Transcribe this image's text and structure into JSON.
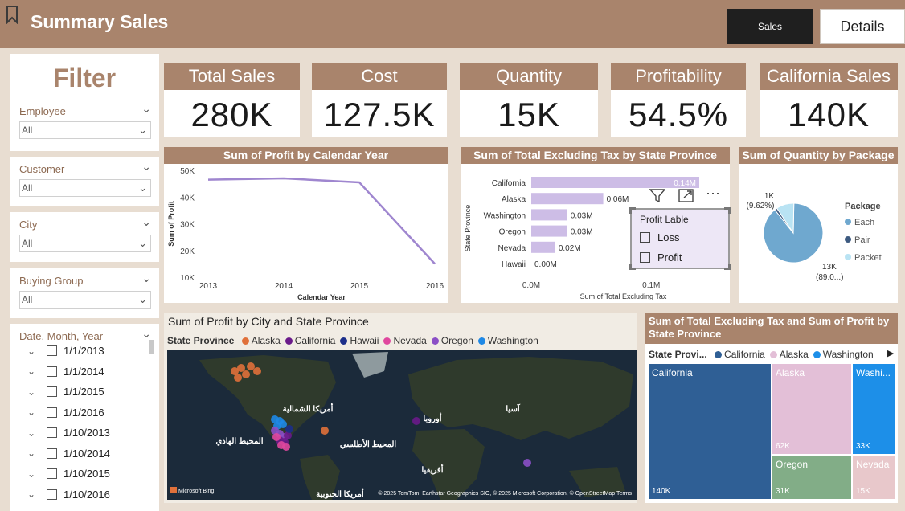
{
  "header": {
    "title": "Summary Sales",
    "sales_button": "Sales",
    "details_button": "Details",
    "bookmark_icon": "bookmark-icon"
  },
  "filter": {
    "title": "Filter",
    "slicers": [
      {
        "label": "Employee",
        "value": "All"
      },
      {
        "label": "Customer",
        "value": "All"
      },
      {
        "label": "City",
        "value": "All"
      },
      {
        "label": "Buying Group",
        "value": "All"
      }
    ],
    "date_slicer": {
      "label": "Date, Month, Year",
      "items": [
        "1/1/2013",
        "1/1/2014",
        "1/1/2015",
        "1/1/2016",
        "1/10/2013",
        "1/10/2014",
        "1/10/2015",
        "1/10/2016"
      ]
    }
  },
  "kpis": [
    {
      "label": "Total Sales",
      "value": "280K"
    },
    {
      "label": "Cost",
      "value": "127.5K"
    },
    {
      "label": "Quantity",
      "value": "15K"
    },
    {
      "label": "Profitability",
      "value": "54.5%"
    },
    {
      "label": "California Sales",
      "value": "140K"
    }
  ],
  "line_chart": {
    "title": "Sum of Profit by Calendar Year",
    "xlabel": "Calendar Year",
    "ylabel": "Sum of Profit",
    "y_ticks": [
      "50K",
      "40K",
      "30K",
      "20K",
      "10K"
    ],
    "x_ticks": [
      "2013",
      "2014",
      "2015",
      "2016"
    ],
    "color": "#9f86cf"
  },
  "bar_chart": {
    "title": "Sum of Total Excluding Tax by State Province",
    "ylabel": "State Province",
    "xlabel": "Sum of Total Excluding Tax",
    "x_ticks": [
      "0.0M",
      "0.1M"
    ],
    "color": "#cdbde6",
    "overflow_label": "0.14M"
  },
  "filter_popup": {
    "title": "Profit Lable",
    "options": [
      "Loss",
      "Profit"
    ],
    "filter_icon": "funnel-icon",
    "focus_icon": "expand-icon",
    "more_icon": "more-options-icon"
  },
  "pie_chart": {
    "title": "Sum of Quantity by Package",
    "legend_title": "Package",
    "label_small_value": "1K",
    "label_small_pct": "(9.62%)",
    "label_large_value": "13K",
    "label_large_pct": "(89.0...)"
  },
  "map": {
    "title": "Sum of Profit by City and State Province",
    "legend_title": "State Province",
    "bing_label": "Microsoft Bing",
    "copyright": "© 2025 TomTom, Earthstar Geographics SIO, © 2025 Microsoft Corporation, © OpenStreetMap Terms",
    "place_labels": {
      "north_america": "أمريكا الشمالية",
      "pacific": "المحيط الهادي",
      "atlantic": "المحيط الأطلسي",
      "europe": "أوروبا",
      "asia": "آسيا",
      "africa": "أفريقيا",
      "south_america": "أمريكا الجنوبية"
    }
  },
  "treemap": {
    "title": "Sum of Total Excluding Tax and Sum of Profit by State Province",
    "legend_title": "State Provi...",
    "legend_next_icon": "chevron-right-icon",
    "legend": [
      "California",
      "Alaska",
      "Washington"
    ]
  },
  "chart_data": [
    {
      "type": "line",
      "title": "Sum of Profit by Calendar Year",
      "xlabel": "Calendar Year",
      "ylabel": "Sum of Profit",
      "x": [
        2013,
        2014,
        2015,
        2016
      ],
      "series": [
        {
          "values": [
            46500,
            47000,
            45500,
            15000
          ]
        }
      ],
      "ylim": [
        10000,
        50000
      ]
    },
    {
      "type": "bar",
      "title": "Sum of Total Excluding Tax by State Province",
      "xlabel": "Sum of Total Excluding Tax",
      "ylabel": "State Province",
      "categories": [
        "California",
        "Alaska",
        "Washington",
        "Oregon",
        "Nevada",
        "Hawaii"
      ],
      "values": [
        0.14,
        0.06,
        0.03,
        0.03,
        0.02,
        0.0
      ],
      "labels": [
        "0.14M",
        "0.06M",
        "0.03M",
        "0.03M",
        "0.02M",
        "0.00M"
      ],
      "xlim": [
        0,
        0.14
      ]
    },
    {
      "type": "pie",
      "title": "Sum of Quantity by Package",
      "categories": [
        "Each",
        "Pair",
        "Packet"
      ],
      "values": [
        89.0,
        1.4,
        9.62
      ],
      "colors": [
        "#6fa8cf",
        "#3d5a80",
        "#b9e3f3"
      ]
    },
    {
      "type": "scatter",
      "title": "Sum of Profit by City and State Province",
      "series": [
        {
          "name": "Alaska",
          "color": "#e0703a"
        },
        {
          "name": "California",
          "color": "#6a1a8a"
        },
        {
          "name": "Hawaii",
          "color": "#1c2f8a"
        },
        {
          "name": "Nevada",
          "color": "#e0479e"
        },
        {
          "name": "Oregon",
          "color": "#8b4fc6"
        },
        {
          "name": "Washington",
          "color": "#1e88e5"
        }
      ]
    },
    {
      "type": "heatmap",
      "title": "Sum of Total Excluding Tax and Sum of Profit by State Province",
      "categories": [
        "California",
        "Alaska",
        "Washington",
        "Oregon",
        "Nevada"
      ],
      "values": [
        "140K",
        "62K",
        "33K",
        "31K",
        "15K"
      ],
      "colors": [
        "#2f5f95",
        "#e3bfd7",
        "#1d8fe8",
        "#82ad87",
        "#e8c8cb"
      ]
    }
  ]
}
